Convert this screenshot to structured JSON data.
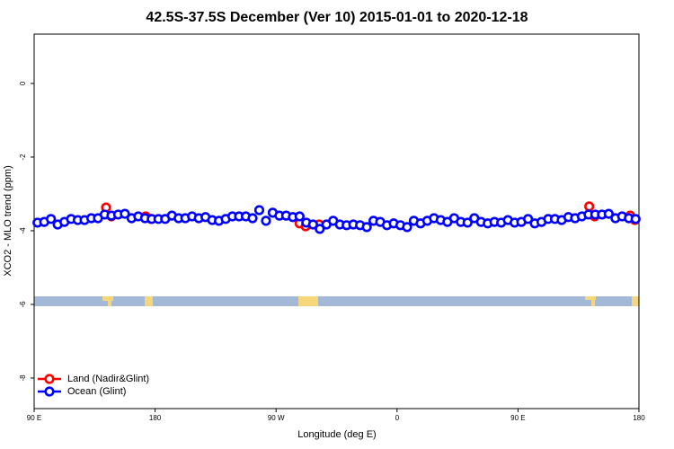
{
  "chart_data": {
    "type": "scatter",
    "title": "42.5S-37.5S December (Ver 10)   2015-01-01 to 2020-12-18",
    "x_label": "Longitude (deg E)",
    "y_label": "XCO2 - MLO trend (ppm)",
    "xlim": [
      90,
      540
    ],
    "ylim": [
      -8.83,
      1.34
    ],
    "xticks": [
      {
        "value": 90,
        "label": "90 E"
      },
      180,
      {
        "value": 270,
        "label": "90 W"
      },
      {
        "value": 360,
        "label": "0"
      },
      {
        "value": 450,
        "label": "90 E"
      },
      {
        "value": 540,
        "label": "180"
      }
    ],
    "yticks": [
      0,
      -2,
      -4,
      -6,
      -8
    ],
    "legend": "bottomleft",
    "series": [
      {
        "name": "Land (Nadir&Glint)",
        "color": "#ff0000",
        "x": [
          143.5,
          147.5,
          173,
          177,
          287.5,
          292,
          302,
          503,
          507,
          533.5,
          537
        ],
        "values": [
          -3.37,
          -3.61,
          -3.61,
          -3.68,
          -3.8,
          -3.88,
          -3.83,
          -3.34,
          -3.61,
          -3.59,
          -3.71
        ]
      },
      {
        "name": "Ocean (Glint)",
        "color": "#0000ff",
        "x": [
          92.5,
          97.5,
          102.5,
          107.5,
          112.5,
          117.5,
          122.5,
          127.5,
          132.5,
          137.5,
          142.5,
          147.5,
          152.5,
          157.5,
          162.5,
          167.5,
          172.5,
          177.5,
          182.5,
          187.5,
          192.5,
          197.5,
          202.5,
          207.5,
          212.5,
          217.5,
          222.5,
          227.5,
          232.5,
          237.5,
          242.5,
          247.5,
          252.5,
          257.5,
          262.5,
          267.5,
          272.5,
          277.5,
          282.5,
          287.5,
          292.5,
          297.5,
          302.5,
          307.5,
          312.5,
          317.5,
          322.5,
          327.5,
          332.5,
          337.5,
          342.5,
          347.5,
          352.5,
          357.5,
          362.5,
          367.5,
          372.5,
          377.5,
          382.5,
          387.5,
          392.5,
          397.5,
          402.5,
          407.5,
          412.5,
          417.5,
          422.5,
          427.5,
          432.5,
          437.5,
          442.5,
          447.5,
          452.5,
          457.5,
          462.5,
          467.5,
          472.5,
          477.5,
          482.5,
          487.5,
          492.5,
          497.5,
          502.5,
          507.5,
          512.5,
          517.5,
          522.5,
          527.5,
          532.5,
          537.5
        ],
        "values": [
          -3.78,
          -3.76,
          -3.68,
          -3.83,
          -3.76,
          -3.68,
          -3.71,
          -3.71,
          -3.66,
          -3.66,
          -3.56,
          -3.59,
          -3.56,
          -3.54,
          -3.66,
          -3.61,
          -3.66,
          -3.68,
          -3.68,
          -3.68,
          -3.59,
          -3.66,
          -3.66,
          -3.61,
          -3.66,
          -3.63,
          -3.71,
          -3.73,
          -3.68,
          -3.61,
          -3.61,
          -3.61,
          -3.66,
          -3.44,
          -3.73,
          -3.51,
          -3.59,
          -3.59,
          -3.63,
          -3.61,
          -3.78,
          -3.83,
          -3.95,
          -3.83,
          -3.73,
          -3.83,
          -3.85,
          -3.83,
          -3.85,
          -3.9,
          -3.73,
          -3.76,
          -3.85,
          -3.8,
          -3.85,
          -3.9,
          -3.73,
          -3.8,
          -3.73,
          -3.66,
          -3.71,
          -3.76,
          -3.66,
          -3.76,
          -3.78,
          -3.66,
          -3.76,
          -3.8,
          -3.76,
          -3.78,
          -3.71,
          -3.78,
          -3.76,
          -3.68,
          -3.8,
          -3.76,
          -3.68,
          -3.68,
          -3.71,
          -3.63,
          -3.66,
          -3.61,
          -3.56,
          -3.56,
          -3.56,
          -3.54,
          -3.66,
          -3.61,
          -3.66,
          -3.68
        ]
      }
    ]
  }
}
